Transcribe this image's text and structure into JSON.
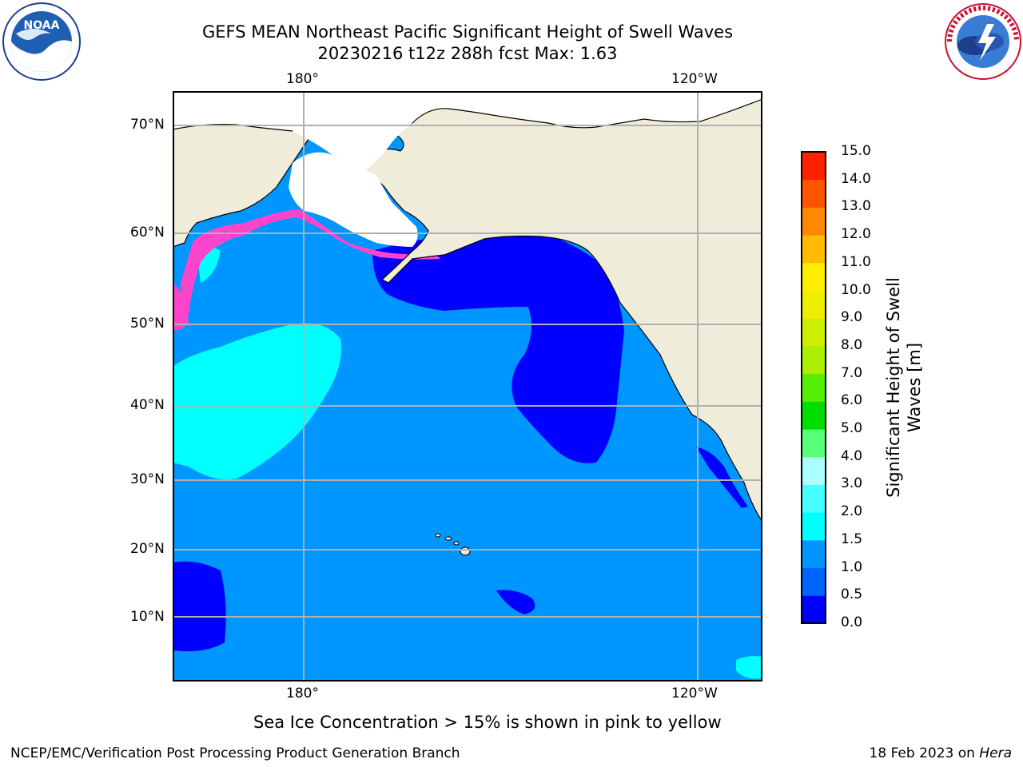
{
  "title_line1": "GEFS MEAN Northeast Pacific Significant Height of Swell Waves",
  "title_line2": "20230216 t12z 288h fcst   Max: 1.63",
  "top_ticks": [
    "180°",
    "120°W"
  ],
  "bottom_ticks": [
    "180°",
    "120°W"
  ],
  "lat_ticks": [
    "70°N",
    "60°N",
    "50°N",
    "40°N",
    "30°N",
    "20°N",
    "10°N"
  ],
  "colorbar": {
    "title_line1": "Significant Height of Swell",
    "title_line2": "Waves [m]",
    "levels": [
      "0.0",
      "0.5",
      "1.0",
      "1.5",
      "2.0",
      "3.0",
      "4.0",
      "5.0",
      "6.0",
      "7.0",
      "8.0",
      "9.0",
      "10.0",
      "11.0",
      "12.0",
      "13.0",
      "14.0",
      "15.0"
    ],
    "colors": [
      "#0000ff",
      "#0064ff",
      "#0096ff",
      "#00ffff",
      "#46ffff",
      "#aaffff",
      "#55ff78",
      "#00dd00",
      "#55ee00",
      "#aaee00",
      "#ccee00",
      "#eeee00",
      "#ffee00",
      "#ffbb00",
      "#ff8800",
      "#ff5500",
      "#ff2200"
    ]
  },
  "caption": "Sea Ice Concentration > 15% is shown in pink to yellow",
  "footer_left": "NCEP/EMC/Verification Post Processing Product Generation Branch",
  "footer_right_prefix": "18 Feb 2023 on ",
  "footer_right_host": "Hera",
  "logos": {
    "left": "noaa-logo",
    "right": "national-weather-service-logo"
  },
  "map_colors": {
    "land": "#efedd9",
    "ocean_medium": "#0096ff",
    "ocean_low": "#0000ff",
    "swell_high": "#00ffff",
    "ice": "#ff44cc"
  }
}
